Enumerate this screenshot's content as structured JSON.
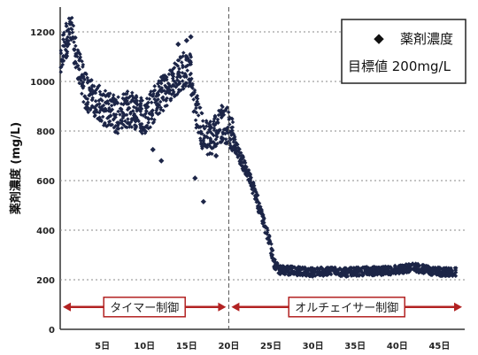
{
  "chart_data": {
    "type": "scatter",
    "ylabel": "薬剤濃度 (mg/L)",
    "xlabel": "",
    "xlim": [
      0,
      48
    ],
    "ylim": [
      0,
      1300
    ],
    "y_ticks": [
      0,
      200,
      400,
      600,
      800,
      1000,
      1200
    ],
    "x_ticks": [
      {
        "value": 5,
        "label": "5日"
      },
      {
        "value": 10,
        "label": "10日"
      },
      {
        "value": 15,
        "label": "15日"
      },
      {
        "value": 20,
        "label": "20日"
      },
      {
        "value": 25,
        "label": "25日"
      },
      {
        "value": 30,
        "label": "30日"
      },
      {
        "value": 35,
        "label": "35日"
      },
      {
        "value": 40,
        "label": "40日"
      },
      {
        "value": 45,
        "label": "45日"
      }
    ],
    "grid": "horizontal-dotted",
    "legend": {
      "placement": "top-right",
      "marker_symbol": "◆",
      "series_label": "薬剤濃度",
      "target_label": "目標値 200mg/L"
    },
    "series": [
      {
        "name": "薬剤濃度",
        "color": "#1c2547",
        "trend": [
          [
            0,
            1050
          ],
          [
            0.5,
            1150
          ],
          [
            1,
            1190
          ],
          [
            1.5,
            1180
          ],
          [
            2,
            1080
          ],
          [
            3,
            960
          ],
          [
            4,
            930
          ],
          [
            5,
            900
          ],
          [
            6,
            880
          ],
          [
            7,
            860
          ],
          [
            8,
            890
          ],
          [
            9,
            880
          ],
          [
            10,
            860
          ],
          [
            11,
            900
          ],
          [
            12,
            950
          ],
          [
            13,
            980
          ],
          [
            14,
            1020
          ],
          [
            15,
            1060
          ],
          [
            15.5,
            1040
          ],
          [
            16,
            900
          ],
          [
            17,
            780
          ],
          [
            18,
            780
          ],
          [
            19,
            830
          ],
          [
            20,
            820
          ],
          [
            20.5,
            770
          ],
          [
            21,
            720
          ],
          [
            22,
            650
          ],
          [
            23,
            560
          ],
          [
            24,
            450
          ],
          [
            25,
            330
          ],
          [
            25.5,
            260
          ],
          [
            26,
            240
          ],
          [
            28,
            235
          ],
          [
            30,
            230
          ],
          [
            32,
            235
          ],
          [
            34,
            230
          ],
          [
            36,
            235
          ],
          [
            38,
            235
          ],
          [
            40,
            240
          ],
          [
            42,
            250
          ],
          [
            44,
            235
          ],
          [
            46,
            230
          ],
          [
            47,
            232
          ]
        ],
        "outliers": [
          [
            15,
            1165
          ],
          [
            14,
            1150
          ],
          [
            15.5,
            1180
          ],
          [
            17,
            515
          ],
          [
            12,
            680
          ],
          [
            11,
            725
          ],
          [
            16,
            610
          ],
          [
            18.5,
            700
          ]
        ]
      }
    ],
    "phase_divider_x": 20,
    "phases": [
      {
        "label": "タイマー制御",
        "start": 0,
        "end": 20
      },
      {
        "label": "オルチェイサー制御",
        "start": 20,
        "end": 48
      }
    ],
    "phase_arrow_y": 90,
    "phase_color": "#b22222"
  }
}
